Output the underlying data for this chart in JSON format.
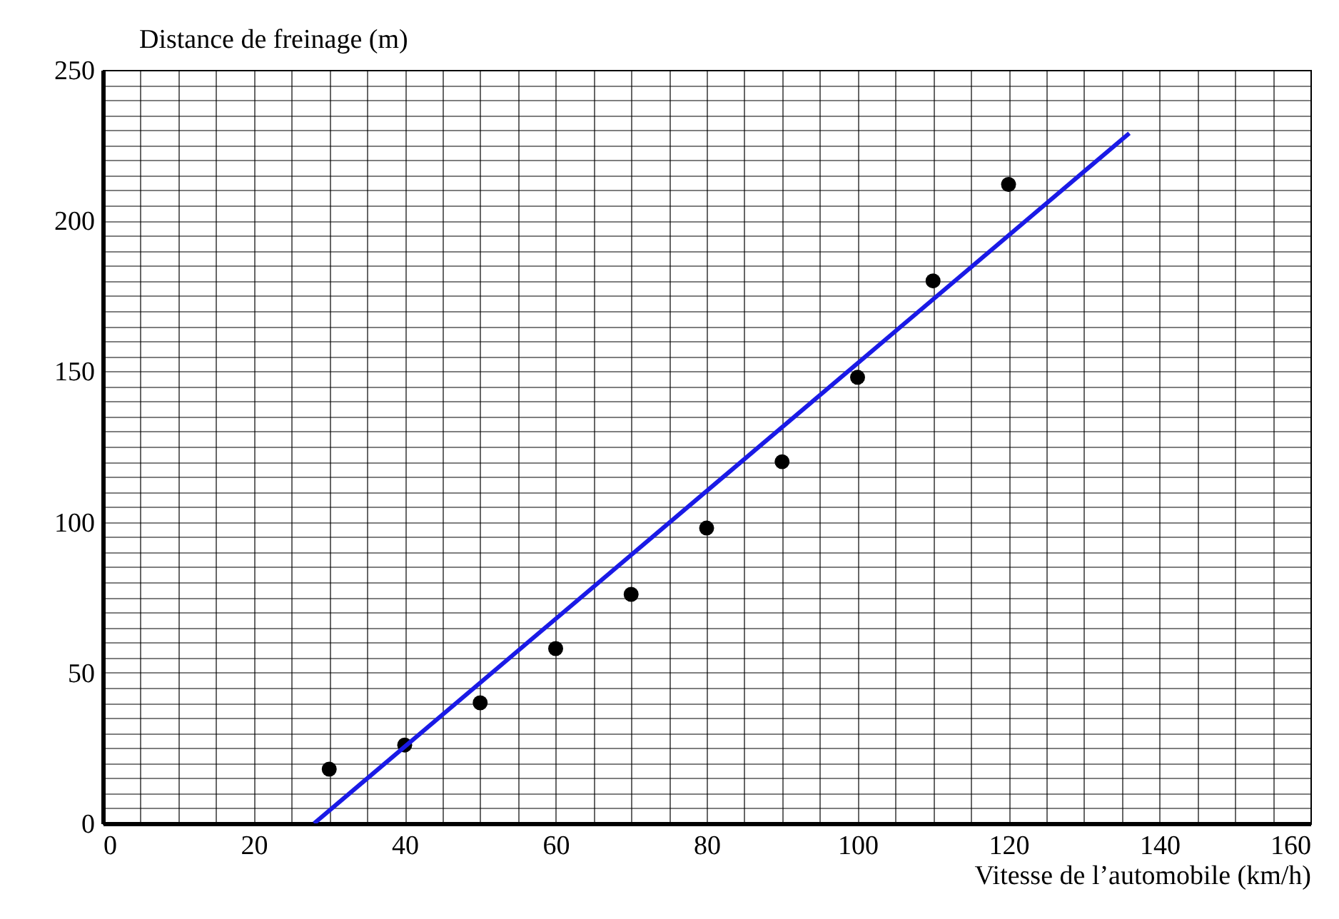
{
  "chart_data": {
    "type": "scatter",
    "xlabel": "Vitesse de l’automobile (km/h)",
    "ylabel": "Distance de freinage (m)",
    "series": [
      {
        "color": "#000000",
        "marker": "circle",
        "x": [
          30,
          40,
          50,
          60,
          70,
          80,
          90,
          100,
          110,
          120
        ],
        "values": [
          18,
          26,
          40,
          58,
          76,
          98,
          120,
          148,
          180,
          212
        ]
      },
      {
        "type": "line",
        "color": "#1a1ae6",
        "x": [
          28,
          136
        ],
        "values": [
          0,
          229
        ]
      }
    ],
    "grid": true,
    "xlim": [
      0,
      160
    ],
    "ylim": [
      0,
      250
    ],
    "xticks": [
      0,
      {
        "value": 5,
        "label": null
      },
      {
        "value": 10,
        "label": null
      },
      {
        "value": 15,
        "label": null
      },
      20,
      {
        "value": 25,
        "label": null
      },
      {
        "value": 30,
        "label": null
      },
      {
        "value": 35,
        "label": null
      },
      40,
      {
        "value": 45,
        "label": null
      },
      {
        "value": 50,
        "label": null
      },
      {
        "value": 55,
        "label": null
      },
      60,
      {
        "value": 65,
        "label": null
      },
      {
        "value": 70,
        "label": null
      },
      {
        "value": 75,
        "label": null
      },
      80,
      {
        "value": 85,
        "label": null
      },
      {
        "value": 90,
        "label": null
      },
      {
        "value": 95,
        "label": null
      },
      100,
      {
        "value": 105,
        "label": null
      },
      {
        "value": 110,
        "label": null
      },
      {
        "value": 115,
        "label": null
      },
      120,
      {
        "value": 125,
        "label": null
      },
      {
        "value": 130,
        "label": null
      },
      {
        "value": 135,
        "label": null
      },
      140,
      {
        "value": 145,
        "label": null
      },
      {
        "value": 150,
        "label": null
      },
      {
        "value": 155,
        "label": null
      },
      160
    ],
    "yticks": [
      0,
      {
        "value": 5,
        "label": null
      },
      {
        "value": 10,
        "label": null
      },
      {
        "value": 15,
        "label": null
      },
      {
        "value": 20,
        "label": null
      },
      {
        "value": 25,
        "label": null
      },
      {
        "value": 30,
        "label": null
      },
      {
        "value": 35,
        "label": null
      },
      {
        "value": 40,
        "label": null
      },
      {
        "value": 45,
        "label": null
      },
      50,
      {
        "value": 55,
        "label": null
      },
      {
        "value": 60,
        "label": null
      },
      {
        "value": 65,
        "label": null
      },
      {
        "value": 70,
        "label": null
      },
      {
        "value": 75,
        "label": null
      },
      {
        "value": 80,
        "label": null
      },
      {
        "value": 85,
        "label": null
      },
      {
        "value": 90,
        "label": null
      },
      {
        "value": 95,
        "label": null
      },
      100,
      {
        "value": 105,
        "label": null
      },
      {
        "value": 110,
        "label": null
      },
      {
        "value": 115,
        "label": null
      },
      {
        "value": 120,
        "label": null
      },
      {
        "value": 125,
        "label": null
      },
      {
        "value": 130,
        "label": null
      },
      {
        "value": 135,
        "label": null
      },
      {
        "value": 140,
        "label": null
      },
      {
        "value": 145,
        "label": null
      },
      150,
      {
        "value": 155,
        "label": null
      },
      {
        "value": 160,
        "label": null
      },
      {
        "value": 165,
        "label": null
      },
      {
        "value": 170,
        "label": null
      },
      {
        "value": 175,
        "label": null
      },
      {
        "value": 180,
        "label": null
      },
      {
        "value": 185,
        "label": null
      },
      {
        "value": 190,
        "label": null
      },
      {
        "value": 195,
        "label": null
      },
      200,
      {
        "value": 205,
        "label": null
      },
      {
        "value": 210,
        "label": null
      },
      {
        "value": 215,
        "label": null
      },
      {
        "value": 220,
        "label": null
      },
      {
        "value": 225,
        "label": null
      },
      {
        "value": 230,
        "label": null
      },
      {
        "value": 235,
        "label": null
      },
      {
        "value": 240,
        "label": null
      },
      {
        "value": 245,
        "label": null
      },
      250
    ]
  }
}
